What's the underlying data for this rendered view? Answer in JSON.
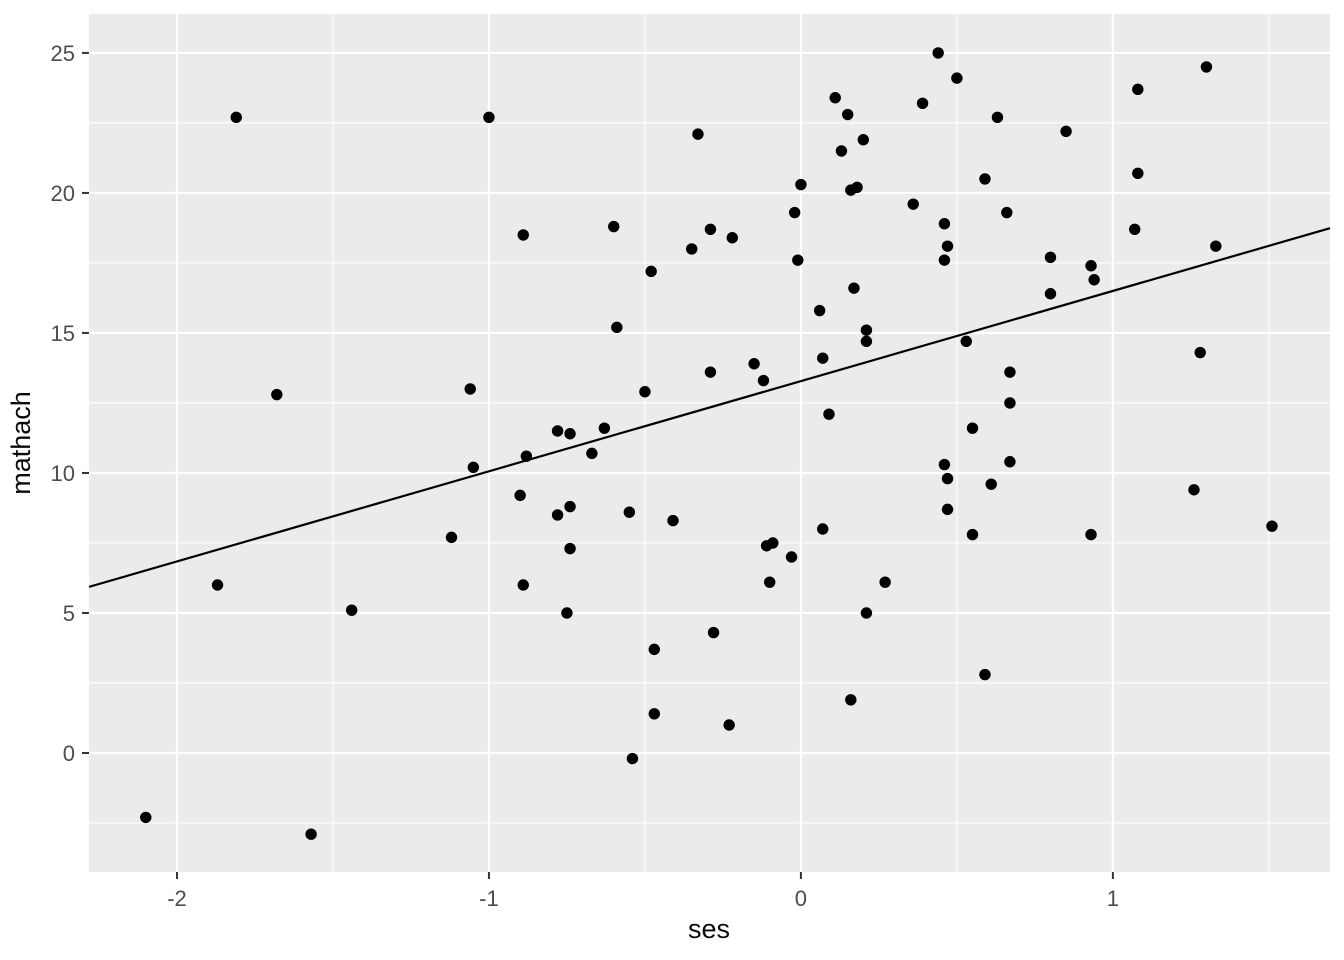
{
  "chart_data": {
    "type": "scatter",
    "title": "",
    "xlabel": "ses",
    "ylabel": "mathach",
    "xlim": [
      -2.282,
      1.696
    ],
    "ylim": [
      -4.25,
      26.39
    ],
    "x_ticks": [
      -2,
      -1,
      0,
      1
    ],
    "y_ticks": [
      0,
      5,
      10,
      15,
      20,
      25
    ],
    "x_minor_ticks": [
      -1.5,
      -0.5,
      0.5,
      1.5
    ],
    "y_minor_ticks": [
      -2.5,
      2.5,
      7.5,
      12.5,
      17.5,
      22.5
    ],
    "grid": true,
    "legend_position": "none",
    "points": [
      [
        -1.81,
        22.7
      ],
      [
        -1.0,
        22.7
      ],
      [
        0.11,
        23.4
      ],
      [
        0.39,
        23.2
      ],
      [
        0.15,
        22.8
      ],
      [
        -0.33,
        22.1
      ],
      [
        0.2,
        21.9
      ],
      [
        0.13,
        21.5
      ],
      [
        0.0,
        20.3
      ],
      [
        0.18,
        20.2
      ],
      [
        0.16,
        20.1
      ],
      [
        0.36,
        19.6
      ],
      [
        -0.02,
        19.3
      ],
      [
        -0.6,
        18.8
      ],
      [
        -0.89,
        18.5
      ],
      [
        -0.29,
        18.7
      ],
      [
        -0.22,
        18.4
      ],
      [
        -0.35,
        18.0
      ],
      [
        -0.01,
        17.6
      ],
      [
        -0.48,
        17.2
      ],
      [
        0.17,
        16.6
      ],
      [
        0.44,
        25.0
      ],
      [
        0.5,
        24.1
      ],
      [
        1.3,
        24.5
      ],
      [
        1.08,
        23.7
      ],
      [
        0.63,
        22.7
      ],
      [
        0.85,
        22.2
      ],
      [
        0.59,
        20.5
      ],
      [
        1.08,
        20.7
      ],
      [
        0.66,
        19.3
      ],
      [
        0.46,
        18.9
      ],
      [
        1.07,
        18.7
      ],
      [
        0.47,
        18.1
      ],
      [
        0.46,
        17.6
      ],
      [
        0.8,
        17.7
      ],
      [
        0.93,
        17.4
      ],
      [
        0.94,
        16.9
      ],
      [
        1.33,
        18.1
      ],
      [
        0.8,
        16.4
      ],
      [
        -1.68,
        12.8
      ],
      [
        -1.06,
        13.0
      ],
      [
        -1.05,
        10.2
      ],
      [
        -1.12,
        7.7
      ],
      [
        -1.87,
        6.0
      ],
      [
        0.06,
        15.8
      ],
      [
        -0.59,
        15.2
      ],
      [
        0.21,
        15.1
      ],
      [
        0.21,
        14.7
      ],
      [
        0.07,
        14.1
      ],
      [
        -0.15,
        13.9
      ],
      [
        -0.29,
        13.6
      ],
      [
        -0.12,
        13.3
      ],
      [
        -0.5,
        12.9
      ],
      [
        0.09,
        12.1
      ],
      [
        -0.78,
        11.5
      ],
      [
        -0.74,
        11.4
      ],
      [
        -0.63,
        11.6
      ],
      [
        -0.67,
        10.7
      ],
      [
        -0.88,
        10.6
      ],
      [
        -0.9,
        9.2
      ],
      [
        -0.74,
        8.8
      ],
      [
        -0.78,
        8.5
      ],
      [
        -0.55,
        8.6
      ],
      [
        -0.41,
        8.3
      ],
      [
        0.07,
        8.0
      ],
      [
        -0.11,
        7.4
      ],
      [
        -0.09,
        7.5
      ],
      [
        -0.03,
        7.0
      ],
      [
        -0.74,
        7.3
      ],
      [
        -0.1,
        6.1
      ],
      [
        0.27,
        6.1
      ],
      [
        -0.89,
        6.0
      ],
      [
        0.53,
        14.7
      ],
      [
        1.28,
        14.3
      ],
      [
        0.67,
        13.6
      ],
      [
        0.67,
        12.5
      ],
      [
        0.55,
        11.6
      ],
      [
        0.67,
        10.4
      ],
      [
        0.46,
        10.3
      ],
      [
        0.47,
        9.8
      ],
      [
        0.61,
        9.6
      ],
      [
        1.26,
        9.4
      ],
      [
        0.47,
        8.7
      ],
      [
        1.51,
        8.1
      ],
      [
        0.55,
        7.8
      ],
      [
        0.93,
        7.8
      ],
      [
        -1.44,
        5.1
      ],
      [
        -2.1,
        -2.3
      ],
      [
        -1.57,
        -2.9
      ],
      [
        -0.75,
        5.0
      ],
      [
        -0.28,
        4.3
      ],
      [
        -0.47,
        3.7
      ],
      [
        0.21,
        5.0
      ],
      [
        0.16,
        1.9
      ],
      [
        -0.47,
        1.4
      ],
      [
        -0.23,
        1.0
      ],
      [
        -0.54,
        -0.2
      ],
      [
        0.59,
        2.8
      ]
    ],
    "regression_line": {
      "slope": 3.22,
      "intercept": 13.28,
      "x_start": -2.282,
      "x_end": 1.696
    },
    "colors": {
      "panel_background": "#EBEBEB",
      "grid_major": "#FFFFFF",
      "grid_minor": "#FFFFFF",
      "point": "#000000",
      "line": "#000000",
      "tick_label": "#4D4D4D",
      "tick_mark": "#333333",
      "axis_title": "#0a0a0a",
      "figure_background": "#FFFFFF"
    }
  }
}
